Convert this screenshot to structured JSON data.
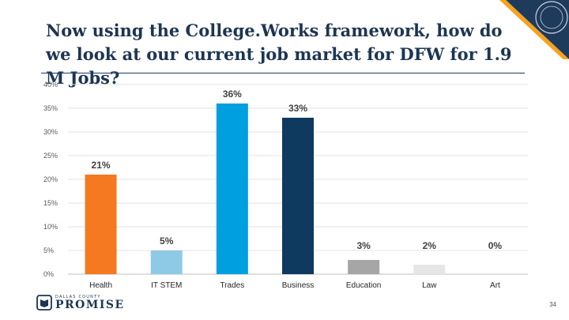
{
  "slide": {
    "title_regular": "Now using the College.Works framework, how do we look at our ",
    "title_bold": "current job market for DFW for 1.9 M Jobs?",
    "page_number": "34"
  },
  "logo": {
    "small_text": "DALLAS COUNTY",
    "big_text": "PROMISE",
    "icon": "book-icon"
  },
  "seal": {
    "icon": "county-seal-icon"
  },
  "chart_data": {
    "type": "bar",
    "categories": [
      "Health",
      "IT STEM",
      "Trades",
      "Business",
      "Education",
      "Law",
      "Art"
    ],
    "values": [
      21,
      5,
      36,
      33,
      3,
      2,
      0
    ],
    "labels": [
      "21%",
      "5%",
      "36%",
      "33%",
      "3%",
      "2%",
      "0%"
    ],
    "colors": [
      "#f47920",
      "#8ecae6",
      "#009fdf",
      "#0f3a5f",
      "#a6a6a6",
      "#e7e6e6",
      "#ffffff"
    ],
    "ylim": [
      0,
      40
    ],
    "yticks": [
      0,
      5,
      10,
      15,
      20,
      25,
      30,
      35,
      40
    ],
    "yticklabels": [
      "0%",
      "5%",
      "10%",
      "15%",
      "20%",
      "25%",
      "30%",
      "35%",
      "40%"
    ],
    "grid": true,
    "legend": "none"
  }
}
